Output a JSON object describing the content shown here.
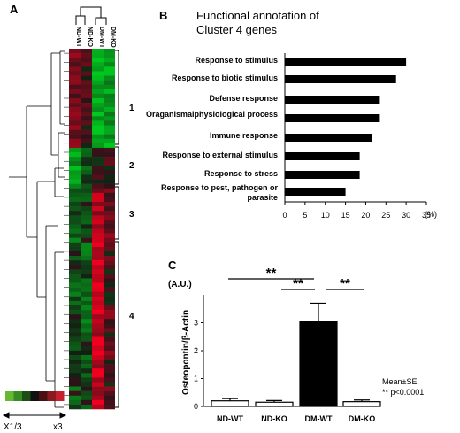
{
  "panels": {
    "a": {
      "letter": "A",
      "column_labels": [
        "ND-WT",
        "ND-KO",
        "DM-WT",
        "DM-KO"
      ],
      "cluster_labels": [
        "1",
        "2",
        "3",
        "4"
      ],
      "scale_min_label": "X1/3",
      "scale_max_label": "x3",
      "scale_colors": [
        "#66b832",
        "#3a8a24",
        "#1f4d16",
        "#111111",
        "#4a1010",
        "#8a1a22",
        "#c4202d"
      ]
    },
    "b": {
      "letter": "B",
      "title_line1": "Functional annotation of",
      "title_line2": "Cluster 4 genes",
      "unit_label": "(%)"
    },
    "c": {
      "letter": "C",
      "unit_label": "(A.U.)",
      "legend_line1": "Mean±SE",
      "legend_line2": "**  p<0.0001",
      "significance_marks": [
        "**",
        "**",
        "**"
      ]
    }
  },
  "chart_data": [
    {
      "type": "heatmap",
      "columns": [
        "ND-WT",
        "ND-KO",
        "DM-WT",
        "DM-KO"
      ],
      "clusters": [
        "1",
        "2",
        "3",
        "4"
      ],
      "color_scale": {
        "low": "X1/3",
        "high": "x3",
        "low_color": "#66b832",
        "high_color": "#c4202d"
      }
    },
    {
      "type": "bar",
      "orientation": "horizontal",
      "title": "Functional annotation of Cluster 4 genes",
      "categories": [
        "Response to stimulus",
        "Response to biotic stimulus",
        "Defense response",
        "Oraganismalphysiological process",
        "Immune response",
        "Response to external stimulus",
        "Response to stress",
        "Response to pest, pathogen or parasite"
      ],
      "values": [
        30,
        27.5,
        23.5,
        23.5,
        21.5,
        18.5,
        18.5,
        15
      ],
      "xlabel": "(%)",
      "xlim": [
        0,
        35
      ],
      "xticks": [
        0,
        5,
        10,
        15,
        20,
        25,
        30,
        35
      ],
      "bar_color": "#000000"
    },
    {
      "type": "bar",
      "categories": [
        "ND-WT",
        "ND-KO",
        "DM-WT",
        "DM-KO"
      ],
      "values": [
        0.2,
        0.15,
        3.05,
        0.17
      ],
      "errors": [
        0.08,
        0.06,
        0.65,
        0.06
      ],
      "ylabel": "Osteopontin/β-Actin",
      "unit": "(A.U.)",
      "ylim": [
        0,
        4
      ],
      "yticks": [
        0,
        1,
        2,
        3
      ],
      "bar_fill": [
        "#ffffff",
        "#ffffff",
        "#000000",
        "#ffffff"
      ],
      "significance": [
        {
          "from": "ND-WT",
          "to": "DM-WT",
          "mark": "**"
        },
        {
          "from": "ND-KO",
          "to": "DM-WT",
          "mark": "**"
        },
        {
          "from": "DM-WT",
          "to": "DM-KO",
          "mark": "**"
        }
      ],
      "legend": [
        "Mean±SE",
        "**  p<0.0001"
      ]
    }
  ]
}
